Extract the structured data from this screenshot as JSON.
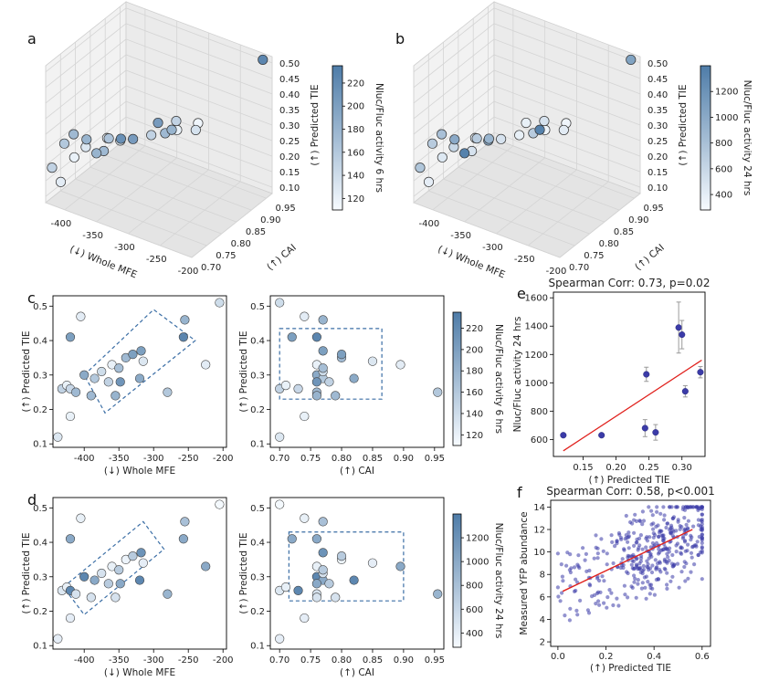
{
  "chart_data": [
    {
      "id": "a",
      "type": "scatter3d",
      "letter": "a",
      "xlabel": "(↓) Whole MFE",
      "ylabel": "(↑) CAI",
      "zlabel": "(↑) Predicted TIE",
      "xticks": [
        "-400",
        "-350",
        "-300",
        "-250",
        "-200"
      ],
      "yticks": [
        "0.70",
        "0.75",
        "0.80",
        "0.85",
        "0.90",
        "0.95"
      ],
      "zticks": [
        "0.10",
        "0.15",
        "0.20",
        "0.25",
        "0.30",
        "0.35",
        "0.40",
        "0.45",
        "0.50"
      ],
      "colorbar": {
        "label": "Nluc/Fluc activity 6 hrs",
        "ticks": [
          "120",
          "140",
          "160",
          "180",
          "200",
          "220"
        ],
        "min": 110,
        "max": 235
      },
      "points": [
        {
          "mfe": -210,
          "cai": 0.96,
          "tie": 0.51,
          "v": 225
        },
        {
          "mfe": -255,
          "cai": 0.75,
          "tie": 0.41,
          "v": 180
        },
        {
          "mfe": -270,
          "cai": 0.76,
          "tie": 0.38,
          "v": 175
        },
        {
          "mfe": -262,
          "cai": 0.78,
          "tie": 0.41,
          "v": 150
        },
        {
          "mfe": -270,
          "cai": 0.8,
          "tie": 0.36,
          "v": 120
        },
        {
          "mfe": -250,
          "cai": 0.82,
          "tie": 0.36,
          "v": 135
        },
        {
          "mfe": -265,
          "cai": 0.86,
          "tie": 0.34,
          "v": 115
        },
        {
          "mfe": -300,
          "cai": 0.8,
          "tie": 0.36,
          "v": 205
        },
        {
          "mfe": -350,
          "cai": 0.7,
          "tie": 0.3,
          "v": 180
        },
        {
          "mfe": -340,
          "cai": 0.72,
          "tie": 0.34,
          "v": 165
        },
        {
          "mfe": -335,
          "cai": 0.75,
          "tie": 0.32,
          "v": 215
        },
        {
          "mfe": -330,
          "cai": 0.78,
          "tie": 0.3,
          "v": 205
        },
        {
          "mfe": -320,
          "cai": 0.82,
          "tie": 0.29,
          "v": 150
        },
        {
          "mfe": -350,
          "cai": 0.78,
          "tie": 0.28,
          "v": 130
        },
        {
          "mfe": -362,
          "cai": 0.75,
          "tie": 0.26,
          "v": 175
        },
        {
          "mfe": -375,
          "cai": 0.72,
          "tie": 0.31,
          "v": 180
        },
        {
          "mfe": -385,
          "cai": 0.7,
          "tie": 0.26,
          "v": 120
        },
        {
          "mfe": -400,
          "cai": 0.73,
          "tie": 0.3,
          "v": 175
        },
        {
          "mfe": -395,
          "cai": 0.76,
          "tie": 0.24,
          "v": 130
        },
        {
          "mfe": -380,
          "cai": 0.8,
          "tie": 0.25,
          "v": 115
        },
        {
          "mfe": -410,
          "cai": 0.72,
          "tie": 0.27,
          "v": 160
        },
        {
          "mfe": -420,
          "cai": 0.7,
          "tie": 0.2,
          "v": 150
        },
        {
          "mfe": -425,
          "cai": 0.74,
          "tie": 0.12,
          "v": 125
        }
      ]
    },
    {
      "id": "b",
      "type": "scatter3d",
      "letter": "b",
      "xlabel": "(↓) Whole MFE",
      "ylabel": "(↑) CAI",
      "zlabel": "(↑) Predicted TIE",
      "xticks": [
        "-400",
        "-350",
        "-300",
        "-250",
        "-200"
      ],
      "yticks": [
        "0.70",
        "0.75",
        "0.80",
        "0.85",
        "0.90",
        "0.95"
      ],
      "zticks": [
        "0.10",
        "0.15",
        "0.20",
        "0.25",
        "0.30",
        "0.35",
        "0.40",
        "0.45",
        "0.50"
      ],
      "colorbar": {
        "label": "Nluc/Fluc activity 24 hrs",
        "ticks": [
          "400",
          "600",
          "800",
          "1000",
          "1200"
        ],
        "min": 280,
        "max": 1400
      },
      "points": [
        {
          "mfe": -210,
          "cai": 0.96,
          "tie": 0.51,
          "v": 1060
        },
        {
          "mfe": -255,
          "cai": 0.75,
          "tie": 0.41,
          "v": 1350
        },
        {
          "mfe": -270,
          "cai": 0.76,
          "tie": 0.38,
          "v": 700
        },
        {
          "mfe": -262,
          "cai": 0.78,
          "tie": 0.41,
          "v": 500
        },
        {
          "mfe": -270,
          "cai": 0.8,
          "tie": 0.36,
          "v": 340
        },
        {
          "mfe": -250,
          "cai": 0.82,
          "tie": 0.36,
          "v": 420
        },
        {
          "mfe": -265,
          "cai": 0.86,
          "tie": 0.34,
          "v": 330
        },
        {
          "mfe": -300,
          "cai": 0.8,
          "tie": 0.36,
          "v": 380
        },
        {
          "mfe": -350,
          "cai": 0.7,
          "tie": 0.3,
          "v": 1350
        },
        {
          "mfe": -340,
          "cai": 0.72,
          "tie": 0.34,
          "v": 700
        },
        {
          "mfe": -335,
          "cai": 0.75,
          "tie": 0.32,
          "v": 900
        },
        {
          "mfe": -330,
          "cai": 0.78,
          "tie": 0.3,
          "v": 500
        },
        {
          "mfe": -320,
          "cai": 0.82,
          "tie": 0.29,
          "v": 380
        },
        {
          "mfe": -350,
          "cai": 0.78,
          "tie": 0.28,
          "v": 1000
        },
        {
          "mfe": -362,
          "cai": 0.75,
          "tie": 0.26,
          "v": 500
        },
        {
          "mfe": -375,
          "cai": 0.72,
          "tie": 0.31,
          "v": 1000
        },
        {
          "mfe": -385,
          "cai": 0.7,
          "tie": 0.26,
          "v": 450
        },
        {
          "mfe": -400,
          "cai": 0.73,
          "tie": 0.3,
          "v": 800
        },
        {
          "mfe": -395,
          "cai": 0.76,
          "tie": 0.24,
          "v": 600
        },
        {
          "mfe": -380,
          "cai": 0.8,
          "tie": 0.25,
          "v": 350
        },
        {
          "mfe": -410,
          "cai": 0.72,
          "tie": 0.27,
          "v": 700
        },
        {
          "mfe": -420,
          "cai": 0.7,
          "tie": 0.2,
          "v": 750
        },
        {
          "mfe": -425,
          "cai": 0.74,
          "tie": 0.12,
          "v": 400
        }
      ]
    },
    {
      "id": "c",
      "type": "scatter-pair",
      "letter": "c",
      "ylabel": "(↑) Predicted TIE",
      "left": {
        "xlabel": "(↓) Whole MFE",
        "xlim": [
          -445,
          -195
        ],
        "xticks": [
          "-400",
          "-350",
          "-300",
          "-250",
          "-200"
        ],
        "xtickvals": [
          -400,
          -350,
          -300,
          -250,
          -200
        ]
      },
      "right": {
        "xlabel": "(↑) CAI",
        "xlim": [
          0.685,
          0.965
        ],
        "xticks": [
          "0.70",
          "0.75",
          "0.80",
          "0.85",
          "0.90",
          "0.95"
        ],
        "xtickvals": [
          0.7,
          0.75,
          0.8,
          0.85,
          0.9,
          0.95
        ]
      },
      "ylim": [
        0.09,
        0.53
      ],
      "yticks": [
        "0.1",
        "0.2",
        "0.3",
        "0.4",
        "0.5"
      ],
      "ytickvals": [
        0.1,
        0.2,
        0.3,
        0.4,
        0.5
      ],
      "colorbar": {
        "label": "Nluc/Fluc activity 6 hrs",
        "ticks": [
          "120",
          "140",
          "160",
          "180",
          "200",
          "220"
        ],
        "tickvals": [
          120,
          140,
          160,
          180,
          200,
          220
        ],
        "min": 110,
        "max": 235
      },
      "points": [
        {
          "mfe": -438,
          "cai": 0.7,
          "tie": 0.12,
          "v": 130
        },
        {
          "mfe": -432,
          "cai": 0.7,
          "tie": 0.26,
          "v": 150
        },
        {
          "mfe": -425,
          "cai": 0.71,
          "tie": 0.27,
          "v": 120
        },
        {
          "mfe": -420,
          "cai": 0.73,
          "tie": 0.26,
          "v": 145
        },
        {
          "mfe": -420,
          "cai": 0.72,
          "tie": 0.41,
          "v": 200
        },
        {
          "mfe": -420,
          "cai": 0.74,
          "tie": 0.18,
          "v": 120
        },
        {
          "mfe": -412,
          "cai": 0.76,
          "tie": 0.25,
          "v": 175
        },
        {
          "mfe": -405,
          "cai": 0.74,
          "tie": 0.47,
          "v": 125
        },
        {
          "mfe": -400,
          "cai": 0.76,
          "tie": 0.3,
          "v": 190
        },
        {
          "mfe": -390,
          "cai": 0.79,
          "tie": 0.24,
          "v": 175
        },
        {
          "mfe": -385,
          "cai": 0.77,
          "tie": 0.29,
          "v": 160
        },
        {
          "mfe": -375,
          "cai": 0.77,
          "tie": 0.31,
          "v": 140
        },
        {
          "mfe": -365,
          "cai": 0.78,
          "tie": 0.28,
          "v": 150
        },
        {
          "mfe": -360,
          "cai": 0.76,
          "tie": 0.33,
          "v": 120
        },
        {
          "mfe": -355,
          "cai": 0.76,
          "tie": 0.24,
          "v": 180
        },
        {
          "mfe": -350,
          "cai": 0.77,
          "tie": 0.32,
          "v": 170
        },
        {
          "mfe": -348,
          "cai": 0.76,
          "tie": 0.28,
          "v": 210
        },
        {
          "mfe": -340,
          "cai": 0.8,
          "tie": 0.35,
          "v": 175
        },
        {
          "mfe": -330,
          "cai": 0.8,
          "tie": 0.36,
          "v": 200
        },
        {
          "mfe": -320,
          "cai": 0.82,
          "tie": 0.29,
          "v": 190
        },
        {
          "mfe": -318,
          "cai": 0.77,
          "tie": 0.37,
          "v": 200
        },
        {
          "mfe": -315,
          "cai": 0.85,
          "tie": 0.34,
          "v": 130
        },
        {
          "mfe": -255,
          "cai": 0.77,
          "tie": 0.46,
          "v": 180
        },
        {
          "mfe": -257,
          "cai": 0.76,
          "tie": 0.41,
          "v": 225
        },
        {
          "mfe": -225,
          "cai": 0.895,
          "tie": 0.33,
          "v": 125
        },
        {
          "mfe": -205,
          "cai": 0.7,
          "tie": 0.51,
          "v": 140
        },
        {
          "mfe": -280,
          "cai": 0.955,
          "tie": 0.25,
          "v": 160
        }
      ]
    },
    {
      "id": "d",
      "type": "scatter-pair",
      "letter": "d",
      "ylabel": "(↑) Predicted TIE",
      "left": {
        "xlabel": "(↓) Whole MFE",
        "xlim": [
          -445,
          -195
        ],
        "xticks": [
          "-400",
          "-350",
          "-300",
          "-250",
          "-200"
        ],
        "xtickvals": [
          -400,
          -350,
          -300,
          -250,
          -200
        ]
      },
      "right": {
        "xlabel": "(↑) CAI",
        "xlim": [
          0.685,
          0.965
        ],
        "xticks": [
          "0.70",
          "0.75",
          "0.80",
          "0.85",
          "0.90",
          "0.95"
        ],
        "xtickvals": [
          0.7,
          0.75,
          0.8,
          0.85,
          0.9,
          0.95
        ]
      },
      "ylim": [
        0.09,
        0.53
      ],
      "yticks": [
        "0.1",
        "0.2",
        "0.3",
        "0.4",
        "0.5"
      ],
      "ytickvals": [
        0.1,
        0.2,
        0.3,
        0.4,
        0.5
      ],
      "colorbar": {
        "label": "Nluc/Fluc activity 24 hrs",
        "ticks": [
          "400",
          "600",
          "800",
          "1000",
          "1200"
        ],
        "tickvals": [
          400,
          600,
          800,
          1000,
          1200
        ],
        "min": 280,
        "max": 1400
      },
      "points": [
        {
          "mfe": -438,
          "cai": 0.7,
          "tie": 0.12,
          "v": 400
        },
        {
          "mfe": -432,
          "cai": 0.7,
          "tie": 0.26,
          "v": 450
        },
        {
          "mfe": -425,
          "cai": 0.71,
          "tie": 0.27,
          "v": 380
        },
        {
          "mfe": -420,
          "cai": 0.73,
          "tie": 0.26,
          "v": 1300
        },
        {
          "mfe": -420,
          "cai": 0.72,
          "tie": 0.41,
          "v": 1000
        },
        {
          "mfe": -420,
          "cai": 0.74,
          "tie": 0.18,
          "v": 400
        },
        {
          "mfe": -412,
          "cai": 0.76,
          "tie": 0.25,
          "v": 500
        },
        {
          "mfe": -405,
          "cai": 0.74,
          "tie": 0.47,
          "v": 380
        },
        {
          "mfe": -400,
          "cai": 0.76,
          "tie": 0.3,
          "v": 1300
        },
        {
          "mfe": -390,
          "cai": 0.79,
          "tie": 0.24,
          "v": 500
        },
        {
          "mfe": -385,
          "cai": 0.77,
          "tie": 0.29,
          "v": 1000
        },
        {
          "mfe": -375,
          "cai": 0.77,
          "tie": 0.31,
          "v": 500
        },
        {
          "mfe": -365,
          "cai": 0.78,
          "tie": 0.28,
          "v": 700
        },
        {
          "mfe": -360,
          "cai": 0.76,
          "tie": 0.33,
          "v": 380
        },
        {
          "mfe": -355,
          "cai": 0.76,
          "tie": 0.24,
          "v": 500
        },
        {
          "mfe": -350,
          "cai": 0.77,
          "tie": 0.32,
          "v": 700
        },
        {
          "mfe": -348,
          "cai": 0.76,
          "tie": 0.28,
          "v": 1000
        },
        {
          "mfe": -340,
          "cai": 0.8,
          "tie": 0.35,
          "v": 350
        },
        {
          "mfe": -330,
          "cai": 0.8,
          "tie": 0.36,
          "v": 700
        },
        {
          "mfe": -320,
          "cai": 0.82,
          "tie": 0.29,
          "v": 1300
        },
        {
          "mfe": -318,
          "cai": 0.77,
          "tie": 0.37,
          "v": 1200
        },
        {
          "mfe": -315,
          "cai": 0.85,
          "tie": 0.34,
          "v": 400
        },
        {
          "mfe": -255,
          "cai": 0.77,
          "tie": 0.46,
          "v": 800
        },
        {
          "mfe": -257,
          "cai": 0.76,
          "tie": 0.41,
          "v": 1000
        },
        {
          "mfe": -225,
          "cai": 0.895,
          "tie": 0.33,
          "v": 1000
        },
        {
          "mfe": -205,
          "cai": 0.7,
          "tie": 0.51,
          "v": 300
        },
        {
          "mfe": -280,
          "cai": 0.955,
          "tie": 0.25,
          "v": 900
        }
      ]
    },
    {
      "id": "e",
      "type": "scatter",
      "letter": "e",
      "title": "Spearman Corr: 0.73, p=0.02",
      "xlabel": "(↑) Predicted TIE",
      "ylabel": "Nluc/Fluc activity 24 hrs",
      "xlim": [
        0.105,
        0.335
      ],
      "ylim": [
        480,
        1640
      ],
      "xticks": [
        "0.15",
        "0.20",
        "0.25",
        "0.30"
      ],
      "xtickvals": [
        0.15,
        0.2,
        0.25,
        0.3
      ],
      "yticks": [
        "600",
        "800",
        "1000",
        "1200",
        "1400",
        "1600"
      ],
      "ytickvals": [
        600,
        800,
        1000,
        1200,
        1400,
        1600
      ],
      "points": [
        {
          "x": 0.12,
          "y": 630,
          "err": 0
        },
        {
          "x": 0.178,
          "y": 630,
          "err": 0
        },
        {
          "x": 0.244,
          "y": 680,
          "err": 60
        },
        {
          "x": 0.246,
          "y": 1060,
          "err": 50
        },
        {
          "x": 0.26,
          "y": 650,
          "err": 55
        },
        {
          "x": 0.295,
          "y": 1390,
          "err": 180
        },
        {
          "x": 0.3,
          "y": 1340,
          "err": 100
        },
        {
          "x": 0.305,
          "y": 940,
          "err": 40
        },
        {
          "x": 0.328,
          "y": 1075,
          "err": 40
        }
      ],
      "fit": {
        "x": [
          0.12,
          0.33
        ],
        "y": [
          520,
          1160
        ]
      }
    },
    {
      "id": "f",
      "type": "scatter",
      "letter": "f",
      "title": "Spearman Corr: 0.58, p<0.001",
      "xlabel": "(↑) Predicted TIE",
      "ylabel": "Measured YFP abundance",
      "xlim": [
        -0.03,
        0.635
      ],
      "ylim": [
        1.6,
        14.6
      ],
      "xticks": [
        "0.0",
        "0.2",
        "0.4",
        "0.6"
      ],
      "xtickvals": [
        0,
        0.2,
        0.4,
        0.6
      ],
      "yticks": [
        "2",
        "4",
        "6",
        "8",
        "10",
        "12",
        "14"
      ],
      "ytickvals": [
        2,
        4,
        6,
        8,
        10,
        12,
        14
      ],
      "n_points": 420,
      "fit": {
        "x": [
          0.02,
          0.56
        ],
        "y": [
          6.5,
          12.0
        ]
      }
    }
  ],
  "colors": {
    "point_dark": "#3b3ba8",
    "fit_line": "#e0201c",
    "cmap_low": "#f7fbff",
    "cmap_high": "#4e7ca8"
  }
}
